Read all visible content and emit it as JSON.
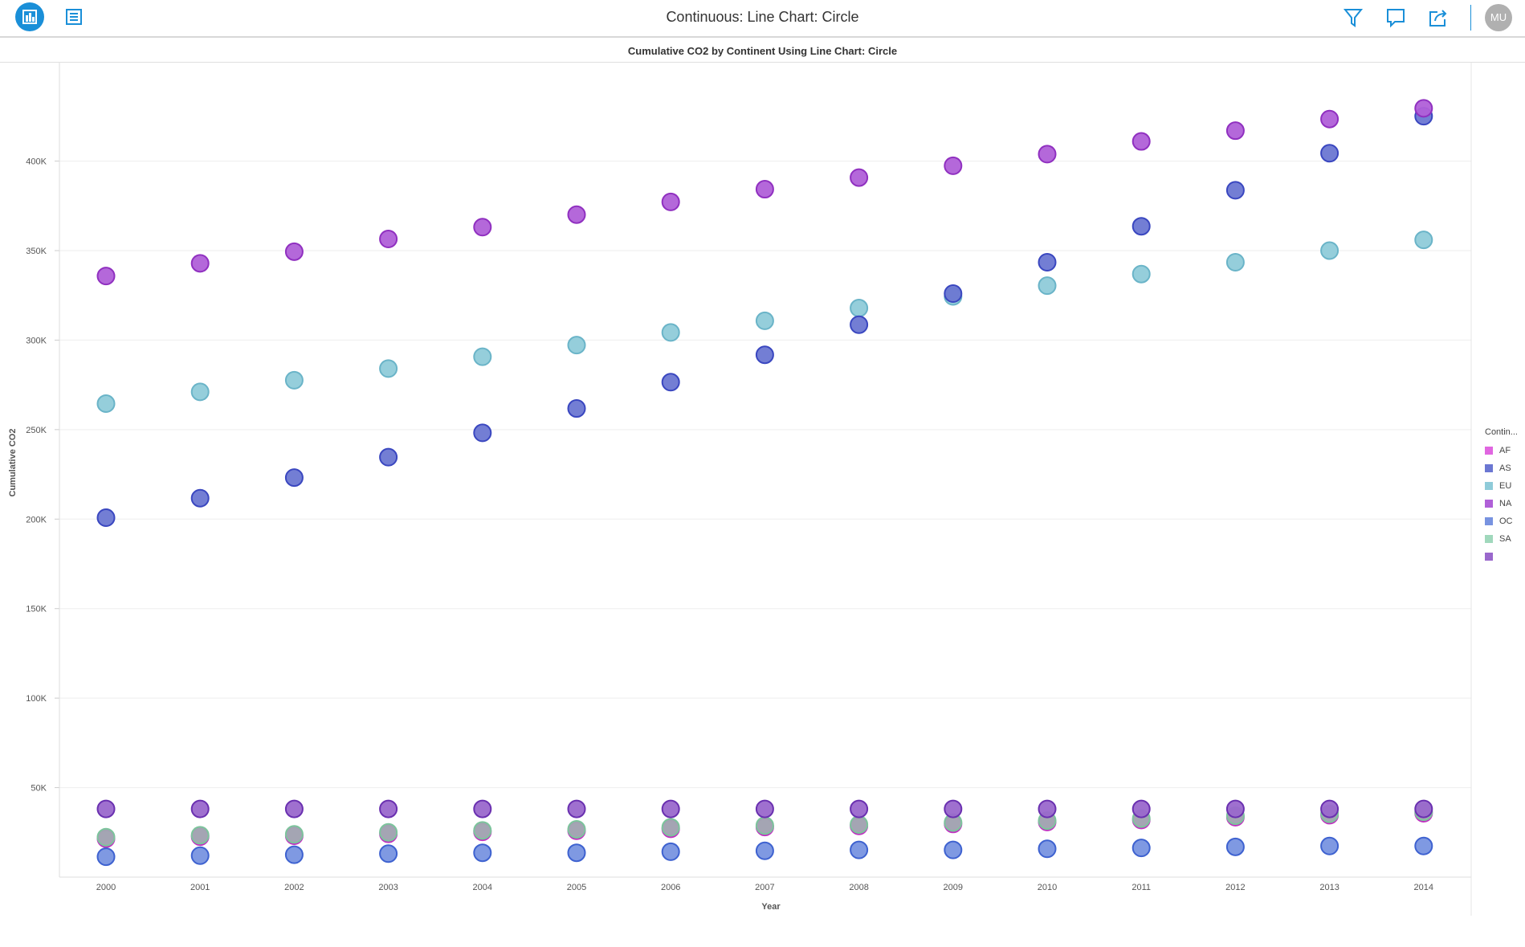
{
  "app": {
    "title": "Continuous: Line Chart: Circle",
    "avatar": "MU",
    "icons": [
      "chart-icon",
      "list-icon",
      "filter-icon",
      "comment-icon",
      "share-icon"
    ],
    "accent": "#1a8fd8"
  },
  "chart_data": {
    "type": "scatter",
    "title": "Cumulative CO2 by Continent Using Line Chart: Circle",
    "xlabel": "Year",
    "ylabel": "Cumulative CO2",
    "x": [
      2000,
      2001,
      2002,
      2003,
      2004,
      2005,
      2006,
      2007,
      2008,
      2009,
      2010,
      2011,
      2012,
      2013,
      2014
    ],
    "ylim": [
      0,
      455000
    ],
    "yticks": [
      {
        "v": 50000,
        "label": "50K"
      },
      {
        "v": 100000,
        "label": "100K"
      },
      {
        "v": 150000,
        "label": "150K"
      },
      {
        "v": 200000,
        "label": "200K"
      },
      {
        "v": 250000,
        "label": "250K"
      },
      {
        "v": 300000,
        "label": "300K"
      },
      {
        "v": 350000,
        "label": "350K"
      },
      {
        "v": 400000,
        "label": "400K"
      }
    ],
    "grid": true,
    "legend": {
      "title": "Contin...",
      "placement": "right"
    },
    "series": [
      {
        "name": "AF",
        "color": "#e066e0",
        "stroke": "#c030c0",
        "values": [
          21500,
          22600,
          23100,
          24200,
          25300,
          25900,
          27000,
          28000,
          28600,
          29700,
          30800,
          31900,
          33500,
          34600,
          35700
        ]
      },
      {
        "name": "OC",
        "color": "#7893e0",
        "stroke": "#3e62d0",
        "values": [
          11400,
          12000,
          12500,
          13100,
          13600,
          13600,
          14200,
          14700,
          15200,
          15200,
          15800,
          16300,
          16900,
          17400,
          17400
        ]
      },
      {
        "name": "SA",
        "color": "#a0a8b0",
        "stroke": "#7cc49c",
        "values": [
          22300,
          23400,
          23900,
          25000,
          26100,
          26700,
          27800,
          28800,
          29400,
          30500,
          31600,
          32700,
          34300,
          35400,
          36500
        ]
      },
      {
        "name": "",
        "color": "#9a68cc",
        "stroke": "#6a30b0",
        "values": [
          38100,
          38100,
          38100,
          38100,
          38100,
          38100,
          38100,
          38100,
          38100,
          38100,
          38100,
          38100,
          38100,
          38100,
          38100
        ]
      },
      {
        "name": "EU",
        "color": "#8fcbd9",
        "stroke": "#6ab4c8",
        "values": [
          264500,
          271100,
          277600,
          284100,
          290700,
          297200,
          304300,
          310800,
          317900,
          324400,
          330400,
          336900,
          343500,
          350000,
          356000
        ]
      },
      {
        "name": "AS",
        "color": "#6b77d2",
        "stroke": "#3a47c0",
        "values": [
          200800,
          211700,
          223200,
          234600,
          248200,
          261800,
          276500,
          291800,
          308600,
          326000,
          343500,
          363600,
          383700,
          404400,
          425100
        ]
      },
      {
        "name": "NA",
        "color": "#b060d8",
        "stroke": "#9030c0",
        "values": [
          335800,
          342900,
          349400,
          356500,
          363100,
          370100,
          377200,
          384300,
          390800,
          397400,
          403900,
          411000,
          417000,
          423500,
          429500
        ]
      }
    ],
    "legend_order": [
      {
        "name": "AF",
        "color": "#e066e0"
      },
      {
        "name": "AS",
        "color": "#6b77d2"
      },
      {
        "name": "EU",
        "color": "#8fcbd9"
      },
      {
        "name": "NA",
        "color": "#b060d8"
      },
      {
        "name": "OC",
        "color": "#7893e0"
      },
      {
        "name": "SA",
        "color": "#a0d8bc"
      },
      {
        "name": "",
        "color": "#9a68cc"
      }
    ]
  }
}
